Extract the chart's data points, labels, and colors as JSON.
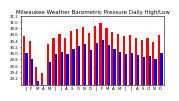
{
  "title": "Milwaukee Weather Barometric Pressure Daily High/Low",
  "bar_width": 0.38,
  "high_color": "#ff0000",
  "low_color": "#0000ff",
  "background_color": "#ffffff",
  "ylim": [
    29.0,
    31.2
  ],
  "yticks": [
    29.2,
    29.4,
    29.6,
    29.8,
    30.0,
    30.2,
    30.4,
    30.6,
    30.8,
    31.0,
    31.2
  ],
  "ytick_labels": [
    "29.2",
    "29.4",
    "29.6",
    "29.8",
    "30.0",
    "30.2",
    "30.4",
    "30.6",
    "30.8",
    "31.0",
    "31.2"
  ],
  "categories": [
    "J",
    "F",
    "M",
    "A",
    "M",
    "J",
    "J",
    "A",
    "S",
    "O",
    "N",
    "D",
    "J",
    "F",
    "M",
    "A",
    "M",
    "J",
    "J",
    "A",
    "S",
    "O",
    "N",
    "D"
  ],
  "highs": [
    30.55,
    30.38,
    29.55,
    29.38,
    30.3,
    30.5,
    30.6,
    30.5,
    30.7,
    30.78,
    30.85,
    30.65,
    30.88,
    30.98,
    30.8,
    30.68,
    30.62,
    30.55,
    30.58,
    30.5,
    30.42,
    30.48,
    30.35,
    30.58
  ],
  "lows": [
    30.0,
    29.82,
    29.1,
    28.92,
    29.72,
    29.98,
    30.05,
    29.98,
    30.15,
    30.22,
    30.3,
    30.1,
    30.32,
    30.42,
    30.25,
    30.12,
    30.05,
    29.98,
    30.02,
    29.95,
    29.88,
    29.92,
    29.82,
    30.02
  ],
  "dotted_x": [
    11.5
  ],
  "title_fontsize": 4.0,
  "tick_fontsize": 2.8,
  "ylabel_fontsize": 3.0
}
